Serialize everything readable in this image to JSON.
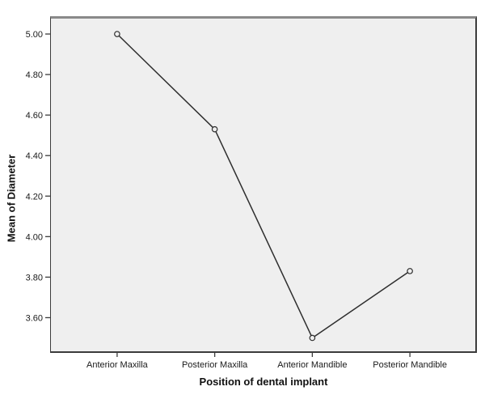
{
  "chart_data": {
    "type": "line",
    "title": "",
    "xlabel": "Position of dental implant",
    "ylabel": "Mean of Diameter",
    "categories": [
      "Anterior Maxilla",
      "Posterior Maxilla",
      "Anterior Mandible",
      "Posterior Mandible"
    ],
    "series": [
      {
        "name": "Mean of Diameter",
        "values": [
          5.0,
          4.53,
          3.5,
          3.83
        ]
      }
    ],
    "y_ticks": [
      5.0,
      4.8,
      4.6,
      4.4,
      4.2,
      4.0,
      3.8,
      3.6
    ],
    "ylim": [
      3.43,
      5.08
    ],
    "tick_decimals": 2,
    "grid": false,
    "legend_position": "none",
    "marker": "open-circle",
    "colors": {
      "line": "#2e2e2e",
      "marker_stroke": "#2e2e2e",
      "plot_background": "#efefef",
      "frame": "#3c3c3c",
      "frame_top": "#8a8a8a",
      "text": "#1a1a1a"
    }
  }
}
